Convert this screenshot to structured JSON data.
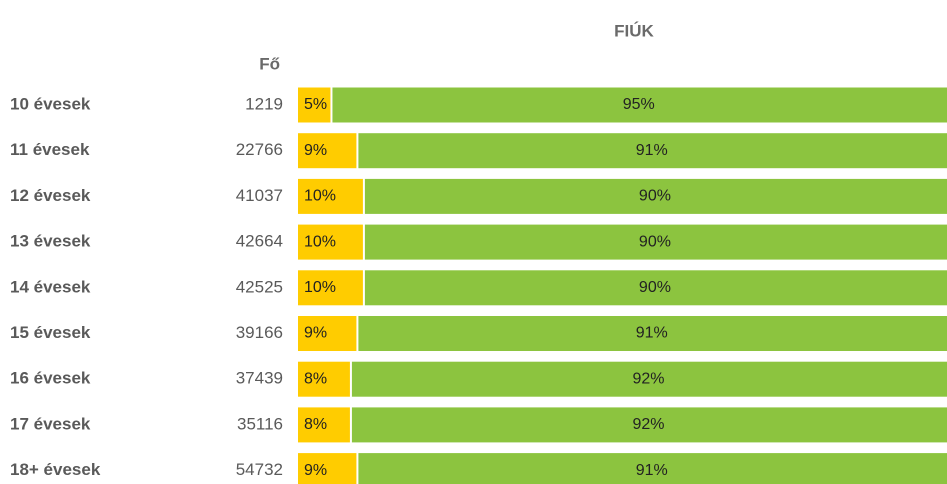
{
  "chart_data": {
    "type": "stacked_bar_horizontal",
    "title": "FIÚK",
    "column_header": "Fő",
    "categories": [
      "10 évesek",
      "11 évesek",
      "12 évesek",
      "13 évesek",
      "14 évesek",
      "15 évesek",
      "16 évesek",
      "17 évesek",
      "18+ évesek"
    ],
    "counts": [
      1219,
      22766,
      41037,
      42664,
      42525,
      39166,
      37439,
      35116,
      54732
    ],
    "xlim": [
      0,
      100
    ],
    "series": [
      {
        "color": "#ffcc00",
        "values": [
          5,
          9,
          10,
          10,
          10,
          9,
          8,
          8,
          9
        ],
        "value_labels": [
          "5%",
          "9%",
          "10%",
          "10%",
          "10%",
          "9%",
          "8%",
          "8%",
          "9%"
        ]
      },
      {
        "color": "#8cc43f",
        "values": [
          95,
          91,
          90,
          90,
          90,
          91,
          92,
          92,
          91
        ],
        "value_labels": [
          "95%",
          "91%",
          "90%",
          "90%",
          "90%",
          "91%",
          "92%",
          "92%",
          "91%"
        ]
      }
    ]
  }
}
